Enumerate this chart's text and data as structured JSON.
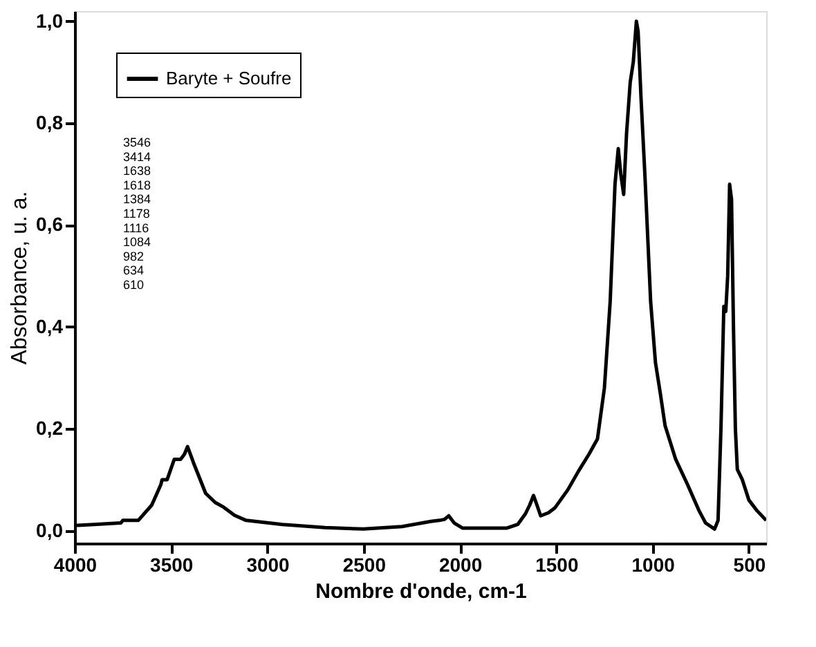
{
  "chart_data": {
    "type": "line",
    "xlabel": "Nombre d'onde, cm-1",
    "ylabel": "Absorbance, u. a.",
    "x": [
      4000,
      3900,
      3760,
      3750,
      3670,
      3600,
      3553,
      3546,
      3520,
      3483,
      3450,
      3430,
      3414,
      3380,
      3320,
      3270,
      3227,
      3170,
      3110,
      2922,
      2700,
      2501,
      2300,
      2150,
      2107,
      2080,
      2058,
      2030,
      1987,
      1756,
      1700,
      1660,
      1638,
      1618,
      1600,
      1581,
      1540,
      1506,
      1440,
      1384,
      1330,
      1286,
      1250,
      1220,
      1195,
      1178,
      1165,
      1150,
      1135,
      1116,
      1100,
      1084,
      1075,
      1060,
      1040,
      1010,
      985,
      960,
      935,
      880,
      818,
      760,
      725,
      678,
      660,
      645,
      630,
      620,
      610,
      600,
      590,
      580,
      570,
      560,
      534,
      500,
      460,
      410
    ],
    "series": [
      {
        "name": "Baryte + Soufre",
        "color": "#000000",
        "values": [
          0.01,
          0.012,
          0.015,
          0.02,
          0.02,
          0.05,
          0.09,
          0.1,
          0.1,
          0.14,
          0.14,
          0.15,
          0.165,
          0.13,
          0.073,
          0.055,
          0.046,
          0.03,
          0.02,
          0.012,
          0.006,
          0.003,
          0.008,
          0.018,
          0.02,
          0.022,
          0.029,
          0.015,
          0.005,
          0.005,
          0.012,
          0.033,
          0.05,
          0.069,
          0.05,
          0.029,
          0.035,
          0.045,
          0.08,
          0.117,
          0.15,
          0.18,
          0.28,
          0.45,
          0.68,
          0.75,
          0.7,
          0.66,
          0.78,
          0.88,
          0.92,
          1.0,
          0.98,
          0.85,
          0.7,
          0.45,
          0.33,
          0.27,
          0.206,
          0.14,
          0.09,
          0.04,
          0.015,
          0.003,
          0.02,
          0.2,
          0.44,
          0.43,
          0.5,
          0.68,
          0.65,
          0.4,
          0.2,
          0.12,
          0.1,
          0.06,
          0.04,
          0.02
        ]
      }
    ],
    "xlim": [
      4000,
      410
    ],
    "xticks": [
      4000,
      3500,
      3000,
      2500,
      2000,
      1500,
      1000,
      500
    ],
    "ylim": [
      -0.025,
      1.02
    ],
    "yticks": [
      {
        "value": 0,
        "label": "0,0"
      },
      {
        "value": 0.2,
        "label": "0,2"
      },
      {
        "value": 0.4,
        "label": "0,4"
      },
      {
        "value": 0.6,
        "label": "0,6"
      },
      {
        "value": 0.8,
        "label": "0,8"
      },
      {
        "value": 1.0,
        "label": "1,0"
      }
    ],
    "annotations": [
      "3546",
      "3414",
      "1638",
      "1618",
      "1384",
      "1178",
      "1116",
      "1084",
      "982",
      "634",
      "610"
    ],
    "legend": "top left",
    "grid": false,
    "marker": "none",
    "line_style": "solid"
  }
}
